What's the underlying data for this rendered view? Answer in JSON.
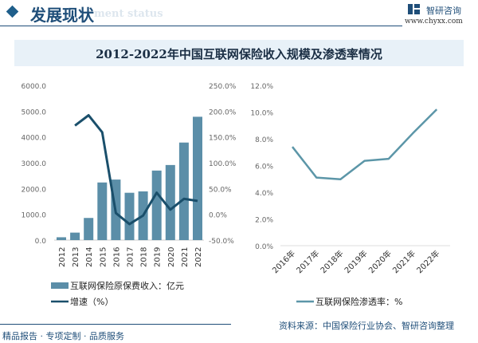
{
  "header": {
    "title": "发展现状",
    "subtitle": "ment status",
    "logo_name": "智研咨询",
    "logo_url": "www.chyxx.com"
  },
  "figure_title": "2012-2022年中国互联网保险收入规模及渗透率情况",
  "colors": {
    "bar": "#5b8ea8",
    "growth_line": "#1a4f6b",
    "penetration_line": "#5c96a8",
    "accent": "#1f4e79"
  },
  "chart_data": [
    {
      "type": "bar",
      "categories": [
        "2012",
        "2013",
        "2014",
        "2015",
        "2016",
        "2017",
        "2018",
        "2019",
        "2020",
        "2021",
        "2022"
      ],
      "series": [
        {
          "name": "互联网保险原保费收入：亿元",
          "type": "bar",
          "axis": "left",
          "values": [
            110,
            290,
            859,
            2234,
            2347,
            1835,
            1889,
            2696,
            2911,
            3782,
            4782
          ]
        },
        {
          "name": "增速（%）",
          "type": "line",
          "axis": "right",
          "values": [
            null,
            172,
            192,
            159,
            2.5,
            -19,
            -2.5,
            42,
            9,
            30,
            26
          ]
        }
      ],
      "yticks_left": [
        "0.0",
        "1000.0",
        "2000.0",
        "3000.0",
        "4000.0",
        "5000.0",
        "6000.0"
      ],
      "ylim_left": [
        0,
        6000
      ],
      "yticks_right": [
        "-50.0%",
        "0.0%",
        "50.0%",
        "100.0%",
        "150.0%",
        "200.0%",
        "250.0%"
      ],
      "ylim_right": [
        -50,
        250
      ],
      "grid": false,
      "legend": "bottom"
    },
    {
      "type": "line",
      "categories": [
        "2016年",
        "2017年",
        "2018年",
        "2019年",
        "2020年",
        "2021年",
        "2022年"
      ],
      "series": [
        {
          "name": "互联网保险渗透率：%",
          "values": [
            7.4,
            5.1,
            4.97,
            6.35,
            6.5,
            8.4,
            10.2
          ]
        }
      ],
      "yticks": [
        "0.0%",
        "2.0%",
        "4.0%",
        "6.0%",
        "8.0%",
        "10.0%",
        "12.0%"
      ],
      "ylim": [
        0,
        12
      ],
      "grid": false,
      "legend": "bottom"
    }
  ],
  "footer": {
    "tagline": "精品报告 · 专项定制 · 品质服务",
    "source": "资料来源：中国保险行业协会、智研咨询整理"
  }
}
